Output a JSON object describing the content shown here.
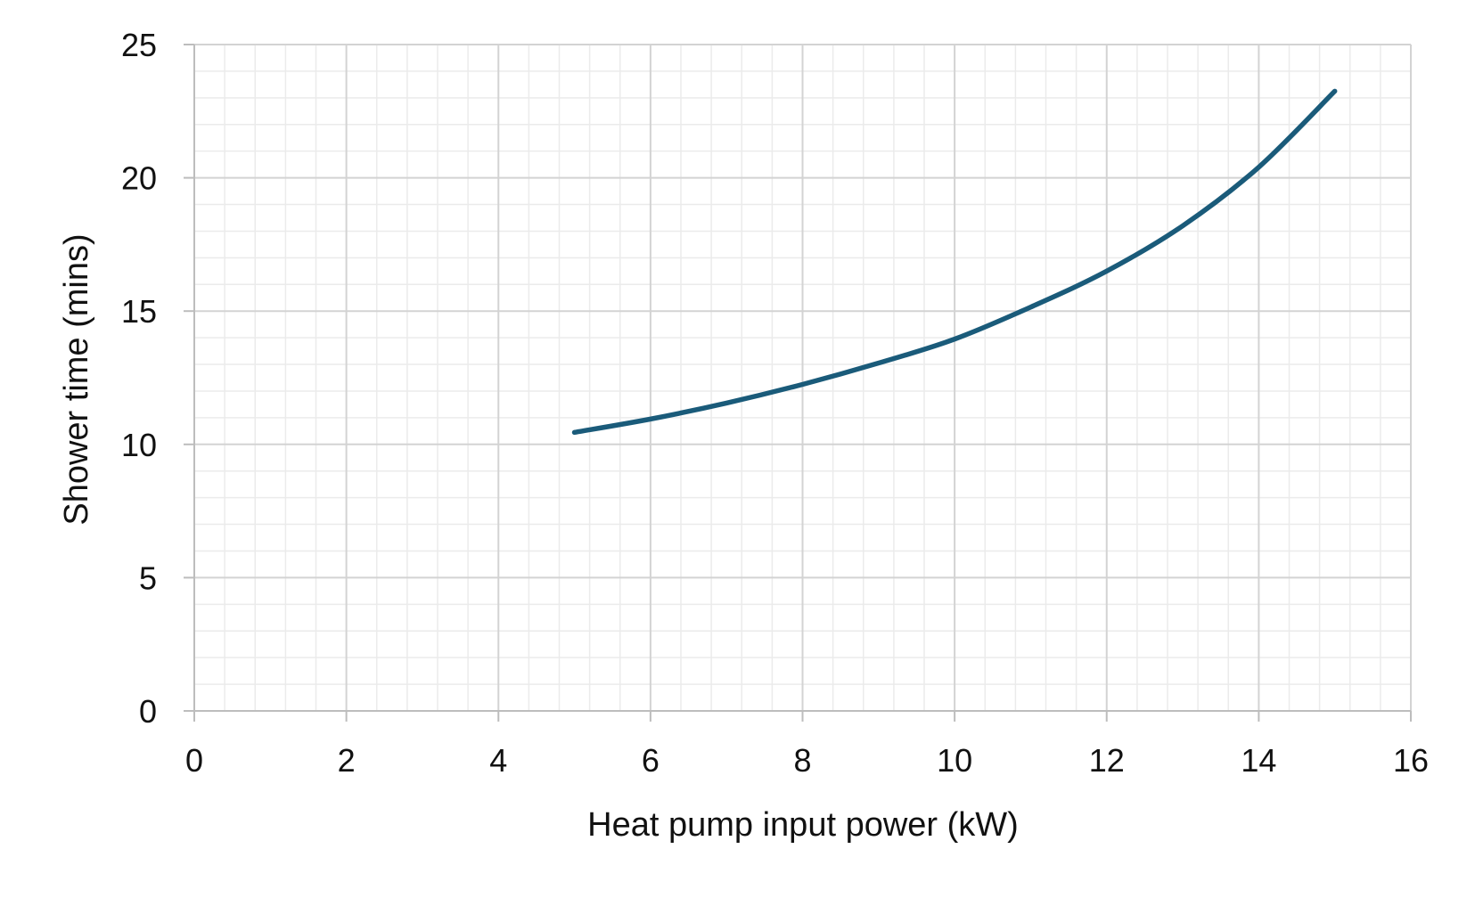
{
  "chart_data": {
    "type": "line",
    "title": "",
    "xlabel": "Heat pump input power (kW)",
    "ylabel": "Shower time (mins)",
    "xlim": [
      0,
      16
    ],
    "ylim": [
      0,
      25
    ],
    "xticks": [
      0,
      2,
      4,
      6,
      8,
      10,
      12,
      14,
      16
    ],
    "yticks": [
      0,
      5,
      10,
      15,
      20,
      25
    ],
    "x_minor_step": 0.4,
    "y_minor_step": 1,
    "grid": true,
    "series": [
      {
        "color": "#1a5b7a",
        "x": [
          5,
          6,
          7,
          8,
          9,
          10,
          11,
          12,
          13,
          14,
          15
        ],
        "y": [
          10.45,
          10.95,
          11.55,
          12.25,
          13.05,
          13.95,
          15.15,
          16.5,
          18.2,
          20.4,
          23.25
        ]
      }
    ]
  }
}
